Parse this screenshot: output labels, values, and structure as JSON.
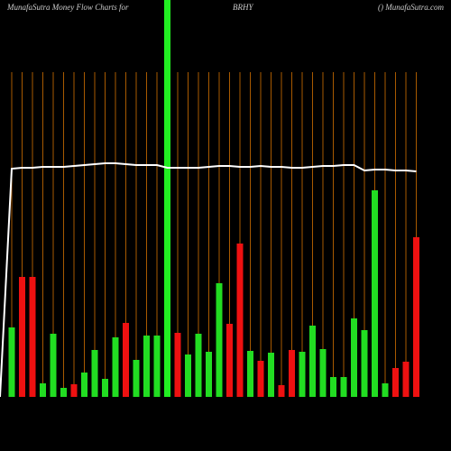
{
  "chart_data": {
    "type": "bar",
    "title": "MunafaSutra  Money Flow  Charts for",
    "symbol": "BRHY",
    "subtitle": "() MunafaSutra.com",
    "values": [
      77,
      133,
      133,
      15,
      70,
      10,
      14,
      27,
      52,
      20,
      66,
      82,
      41,
      68,
      68,
      440,
      71,
      47,
      70,
      50,
      126,
      81,
      170,
      51,
      40,
      49,
      13,
      52,
      50,
      79,
      53,
      22,
      22,
      87,
      74,
      229,
      15,
      32,
      39,
      177
    ],
    "bar_colors": [
      "#22dd22",
      "#ee1111",
      "#ee1111",
      "#22dd22",
      "#22dd22",
      "#22dd22",
      "#ee1111",
      "#22dd22",
      "#22dd22",
      "#22dd22",
      "#22dd22",
      "#ee1111",
      "#22dd22",
      "#22dd22",
      "#22dd22",
      "#22ee22",
      "#ee1111",
      "#22dd22",
      "#22dd22",
      "#22dd22",
      "#22dd22",
      "#ee1111",
      "#ee1111",
      "#22dd22",
      "#ee1111",
      "#22dd22",
      "#ee1111",
      "#ee1111",
      "#22dd22",
      "#22dd22",
      "#22dd22",
      "#22dd22",
      "#22dd22",
      "#22dd22",
      "#22dd22",
      "#22dd22",
      "#22dd22",
      "#ee1111",
      "#ee1111",
      "#ee1111"
    ],
    "line": {
      "color": "#ffffff",
      "values": [
        253,
        254,
        254,
        255,
        255,
        255,
        256,
        257,
        258,
        259,
        259,
        258,
        257,
        257,
        257,
        254,
        254,
        254,
        254,
        255,
        256,
        256,
        255,
        255,
        256,
        255,
        255,
        254,
        254,
        255,
        256,
        256,
        257,
        257,
        251,
        252,
        252,
        251,
        251,
        250
      ]
    },
    "ylim": [
      0,
      440
    ],
    "guide_color": "#a85a00"
  }
}
